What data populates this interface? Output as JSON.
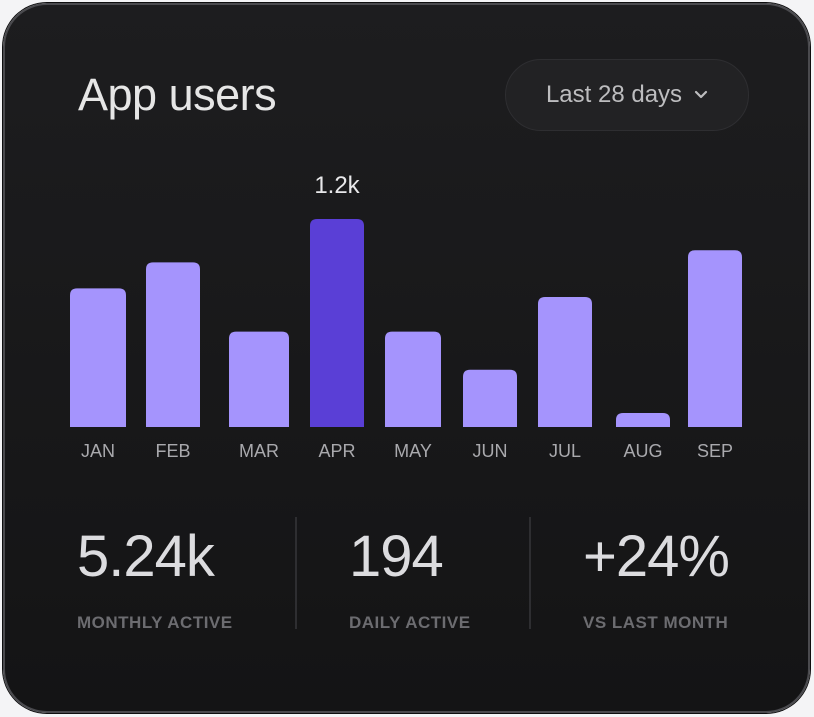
{
  "card": {
    "title": "App users",
    "range_selector": {
      "label": "Last 28 days",
      "icon": "chevron-down-icon"
    }
  },
  "chart_data": {
    "type": "bar",
    "categories": [
      "JAN",
      "FEB",
      "MAR",
      "APR",
      "MAY",
      "JUN",
      "JUL",
      "AUG",
      "SEP"
    ],
    "values": [
      0.8,
      0.95,
      0.55,
      1.2,
      0.55,
      0.33,
      0.75,
      0.08,
      1.02
    ],
    "highlight_index": 3,
    "highlight_label": "1.2k",
    "ylim": [
      0,
      1.2
    ],
    "grid": false,
    "colors": {
      "bar": "#a594fd",
      "highlight": "#5a3fd6"
    }
  },
  "stats": [
    {
      "value": "5.24k",
      "label": "MONTHLY ACTIVE"
    },
    {
      "value": "194",
      "label": "DAILY ACTIVE"
    },
    {
      "value": "+24%",
      "label": "VS LAST MONTH"
    }
  ]
}
